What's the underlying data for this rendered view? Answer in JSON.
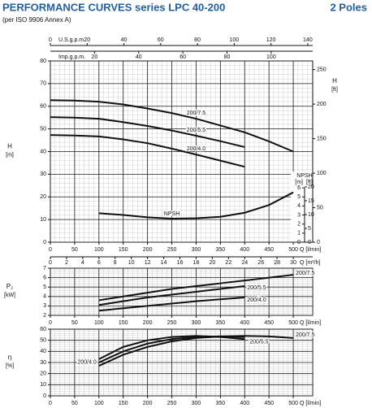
{
  "header": {
    "title": "PERFORMANCE CURVES series LPC 40-200",
    "poles": "2 Poles",
    "subtitle": "(per ISO 9906 Annex A)"
  },
  "chart_data": [
    {
      "type": "line",
      "ylabel": "H",
      "yunit": "[m]",
      "y2label": "H",
      "y2unit": "[ft]",
      "xlabel": "Q [l/min]",
      "x": [
        0,
        50,
        100,
        150,
        200,
        250,
        300,
        350,
        400,
        450,
        500
      ],
      "xlim": [
        0,
        540
      ],
      "xticks": [
        0,
        50,
        100,
        150,
        200,
        250,
        300,
        350,
        400,
        450,
        500
      ],
      "ylim": [
        0,
        80
      ],
      "yticks": [
        0,
        10,
        20,
        30,
        40,
        50,
        60,
        70,
        80
      ],
      "y2lim": [
        0,
        262.5
      ],
      "y2ticks": [
        0,
        50,
        100,
        150,
        200,
        250
      ],
      "top_axes": [
        {
          "label": "U.S.g.p.m.",
          "lim": [
            0,
            142.7
          ],
          "ticks": [
            0,
            20,
            40,
            60,
            80,
            100,
            120,
            140
          ]
        },
        {
          "label": "Imp.g.p.m.",
          "lim": [
            0,
            118.8
          ],
          "ticks": [
            20,
            40,
            60,
            80,
            100
          ]
        }
      ],
      "npsh": {
        "label": "NPSH",
        "unit": "[m]",
        "unit2": "[ft]",
        "ylim": [
          0,
          20
        ],
        "yticks": [
          0,
          1,
          2,
          3,
          4,
          5,
          6
        ],
        "y2lim": [
          0,
          65.6
        ],
        "y2ticks": [
          0,
          5,
          10,
          15,
          20
        ]
      },
      "grid": true,
      "series": [
        {
          "name": "200/7.5",
          "color": "#111111",
          "values": [
            62.7,
            62.5,
            62,
            60.8,
            59,
            57,
            54.5,
            51.5,
            48.5,
            44.5,
            40
          ]
        },
        {
          "name": "200/5.5",
          "color": "#111111",
          "values": [
            55.2,
            55,
            54.5,
            53,
            51.3,
            49.3,
            47,
            44.6,
            42,
            null,
            null
          ]
        },
        {
          "name": "200/4.0",
          "color": "#111111",
          "values": [
            47.3,
            47.1,
            46.7,
            45.4,
            43.7,
            41.3,
            38.7,
            36,
            33.3,
            null,
            null
          ]
        },
        {
          "name": "NPSH",
          "color": "#111111",
          "axis": "npsh",
          "values": [
            null,
            null,
            3.2,
            3.0,
            2.75,
            2.6,
            2.65,
            2.8,
            3.25,
            4.1,
            5.5
          ]
        }
      ]
    },
    {
      "type": "line",
      "ylabel": "P₂",
      "yunit": "[kW]",
      "xlabel": "Q [l/min]",
      "x": [
        0,
        50,
        100,
        150,
        200,
        250,
        300,
        350,
        400,
        450,
        500
      ],
      "xlim": [
        0,
        540
      ],
      "xticks": [
        0,
        50,
        100,
        150,
        200,
        250,
        300,
        350,
        400,
        450,
        500
      ],
      "ylim": [
        2,
        7
      ],
      "yticks": [
        2,
        3,
        4,
        5,
        6,
        7
      ],
      "top_axes": [
        {
          "label": "Q [m³/h]",
          "lim": [
            0,
            32.4
          ],
          "ticks": [
            0,
            2,
            4,
            6,
            8,
            10,
            12,
            14,
            16,
            18,
            20,
            22,
            24,
            26,
            28,
            30
          ]
        }
      ],
      "grid": true,
      "series": [
        {
          "name": "200/7.5",
          "color": "#111111",
          "values": [
            null,
            null,
            3.6,
            4.0,
            4.4,
            4.8,
            5.1,
            5.4,
            5.7,
            6.0,
            6.3
          ]
        },
        {
          "name": "200/5.5",
          "color": "#111111",
          "values": [
            null,
            null,
            3.1,
            3.5,
            3.9,
            4.2,
            4.5,
            4.8,
            5.1,
            null,
            null
          ]
        },
        {
          "name": "200/4.0",
          "color": "#111111",
          "values": [
            null,
            null,
            2.5,
            2.75,
            3.0,
            3.25,
            3.5,
            3.7,
            3.9,
            null,
            null
          ]
        }
      ]
    },
    {
      "type": "line",
      "ylabel": "η",
      "yunit": "[%]",
      "xlabel": "Q [l/min]",
      "x": [
        0,
        50,
        100,
        150,
        200,
        250,
        300,
        350,
        400,
        450,
        500
      ],
      "xlim": [
        0,
        540
      ],
      "xticks": [
        0,
        50,
        100,
        150,
        200,
        250,
        300,
        350,
        400,
        450,
        500
      ],
      "ylim": [
        0,
        60
      ],
      "yticks": [
        0,
        10,
        20,
        30,
        40,
        50,
        60
      ],
      "grid": true,
      "series": [
        {
          "name": "200/7.5",
          "color": "#111111",
          "values": [
            null,
            null,
            27,
            37,
            44,
            49,
            52,
            53.5,
            54,
            53.5,
            52
          ]
        },
        {
          "name": "200/5.5",
          "color": "#111111",
          "values": [
            null,
            null,
            30,
            40,
            47,
            51,
            53,
            53.5,
            53,
            null,
            null
          ]
        },
        {
          "name": "200/4.0",
          "color": "#111111",
          "values": [
            null,
            null,
            33,
            44,
            50,
            53,
            54,
            53,
            51,
            null,
            null
          ]
        }
      ]
    }
  ]
}
